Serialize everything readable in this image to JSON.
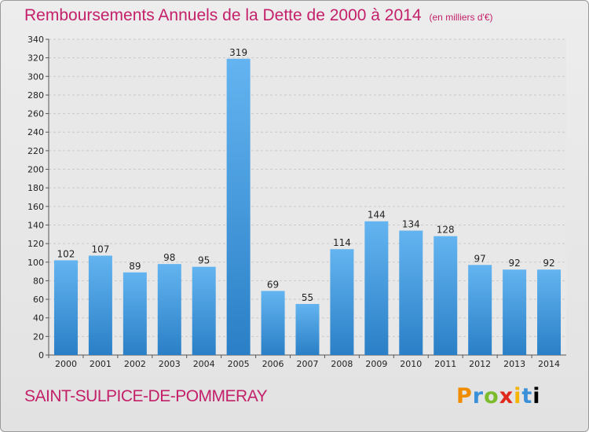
{
  "title": "Remboursements Annuels de la Dette de 2000 à 2014",
  "subtitle": "(en milliers d'€)",
  "commune": "SAINT-SULPICE-DE-POMMERAY",
  "logo": [
    "P",
    "r",
    "o",
    "x",
    "i",
    "t",
    "i"
  ],
  "colors": {
    "title": "#c4206a",
    "bar_top": "#63b4f0",
    "bar_bottom": "#2a7fc6"
  },
  "chart_data": {
    "type": "bar",
    "title": "Remboursements Annuels de la Dette de 2000 à 2014",
    "subtitle": "(en milliers d'€)",
    "categories": [
      "2000",
      "2001",
      "2002",
      "2003",
      "2004",
      "2005",
      "2006",
      "2007",
      "2008",
      "2009",
      "2010",
      "2011",
      "2012",
      "2013",
      "2014"
    ],
    "values": [
      102,
      107,
      89,
      98,
      95,
      319,
      69,
      55,
      114,
      144,
      134,
      128,
      97,
      92,
      92
    ],
    "ylim": [
      0,
      340
    ],
    "yticks": [
      0,
      20,
      40,
      60,
      80,
      100,
      120,
      140,
      160,
      180,
      200,
      220,
      240,
      260,
      280,
      300,
      320,
      340
    ],
    "grid": true,
    "xlabel": "",
    "ylabel": ""
  }
}
